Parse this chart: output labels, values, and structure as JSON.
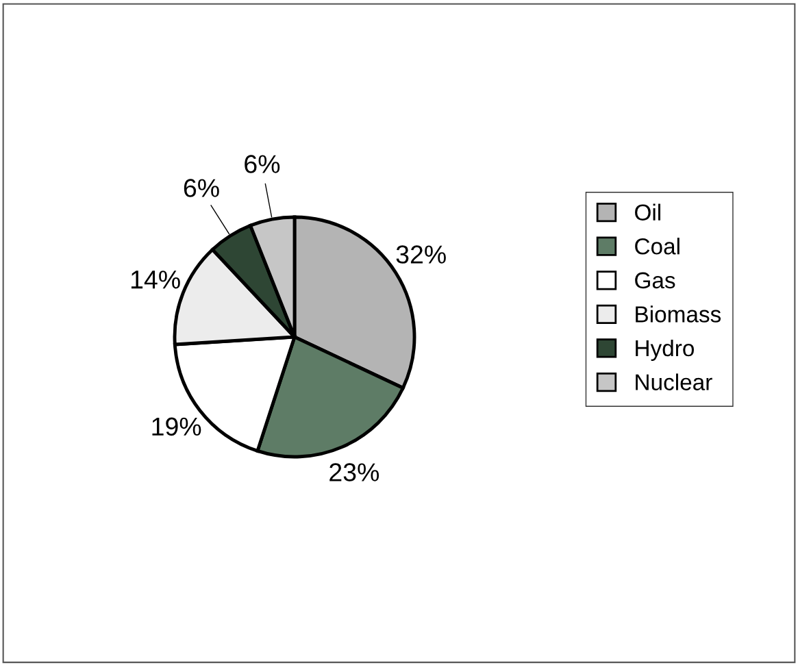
{
  "chart_data": {
    "type": "pie",
    "categories": [
      "Oil",
      "Coal",
      "Gas",
      "Biomass",
      "Hydro",
      "Nuclear"
    ],
    "values": [
      32,
      23,
      19,
      14,
      6,
      6
    ],
    "value_labels": [
      "32%",
      "23%",
      "19%",
      "14%",
      "6%",
      "6%"
    ],
    "colors": [
      "#b4b4b4",
      "#5e7c66",
      "#ffffff",
      "#ececec",
      "#2e4634",
      "#c6c6c6"
    ],
    "legend": "right"
  }
}
